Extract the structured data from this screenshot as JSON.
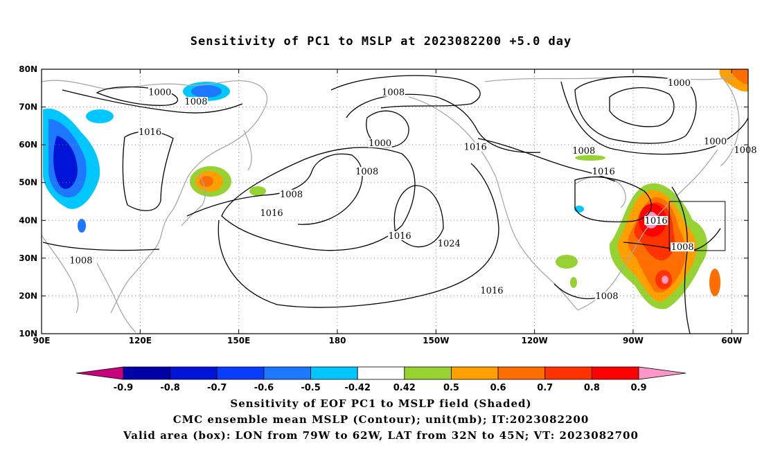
{
  "title": "Sensitivity of PC1 to MSLP at 2023082200 +5.0 day",
  "map": {
    "lon_range": [
      90,
      305
    ],
    "lat_range": [
      10,
      80
    ],
    "lat_ticks": [
      {
        "lat": 80,
        "label": "80N"
      },
      {
        "lat": 70,
        "label": "70N"
      },
      {
        "lat": 60,
        "label": "60N"
      },
      {
        "lat": 50,
        "label": "50N"
      },
      {
        "lat": 40,
        "label": "40N"
      },
      {
        "lat": 30,
        "label": "30N"
      },
      {
        "lat": 20,
        "label": "20N"
      },
      {
        "lat": 10,
        "label": "10N"
      }
    ],
    "lon_ticks": [
      {
        "lon": 90,
        "label": "90E"
      },
      {
        "lon": 120,
        "label": "120E"
      },
      {
        "lon": 150,
        "label": "150E"
      },
      {
        "lon": 180,
        "label": "180"
      },
      {
        "lon": 210,
        "label": "150W"
      },
      {
        "lon": 240,
        "label": "120W"
      },
      {
        "lon": 270,
        "label": "90W"
      },
      {
        "lon": 300,
        "label": "60W"
      }
    ],
    "gridlines": "dotted",
    "valid_box": {
      "lon_min": 281,
      "lon_max": 298,
      "lat_min": 32,
      "lat_max": 45
    },
    "contour_labels": [
      {
        "text": "1000",
        "lon": 126,
        "lat": 73.5
      },
      {
        "text": "1008",
        "lon": 137,
        "lat": 71
      },
      {
        "text": "1016",
        "lon": 123,
        "lat": 63
      },
      {
        "text": "1008",
        "lon": 102,
        "lat": 29
      },
      {
        "text": "1008",
        "lon": 166,
        "lat": 46.5
      },
      {
        "text": "1016",
        "lon": 160,
        "lat": 41.5
      },
      {
        "text": "1008",
        "lon": 197,
        "lat": 73.5
      },
      {
        "text": "1000",
        "lon": 193,
        "lat": 60
      },
      {
        "text": "1008",
        "lon": 189,
        "lat": 52.5
      },
      {
        "text": "1016",
        "lon": 222,
        "lat": 59
      },
      {
        "text": "1016",
        "lon": 199,
        "lat": 35.5
      },
      {
        "text": "1024",
        "lon": 214,
        "lat": 33.5
      },
      {
        "text": "1016",
        "lon": 227,
        "lat": 21
      },
      {
        "text": "1008",
        "lon": 255,
        "lat": 58
      },
      {
        "text": "1016",
        "lon": 261,
        "lat": 52.5
      },
      {
        "text": "1000",
        "lon": 284,
        "lat": 76
      },
      {
        "text": "1000",
        "lon": 295,
        "lat": 60.5
      },
      {
        "text": "1008",
        "lon": 307,
        "lat": 58.2
      },
      {
        "text": "1016",
        "lon": 277,
        "lat": 39.5
      },
      {
        "text": "1008",
        "lon": 285,
        "lat": 32.5
      },
      {
        "text": "1008",
        "lon": 262,
        "lat": 19.5
      }
    ]
  },
  "colorbar": {
    "labels": [
      "-0.9",
      "-0.8",
      "-0.7",
      "-0.6",
      "-0.5",
      "-0.42",
      "0.42",
      "0.5",
      "0.6",
      "0.7",
      "0.8",
      "0.9"
    ],
    "low_color": "#c8047c",
    "colors": [
      "#0000a8",
      "#0014d8",
      "#0a3cff",
      "#1e78ff",
      "#00c8ff",
      "#ffffff",
      "#96d232",
      "#ffa000",
      "#ff6e00",
      "#ff3200",
      "#ff0000"
    ],
    "high_color": "#ff96c8"
  },
  "captions": [
    "Sensitivity of EOF PC1 to MSLP field (Shaded)",
    "CMC ensemble mean MSLP (Contour); unit(mb); IT:2023082200",
    "Valid area (box): LON from 79W to 62W, LAT from 32N to 45N; VT: 2023082700"
  ]
}
